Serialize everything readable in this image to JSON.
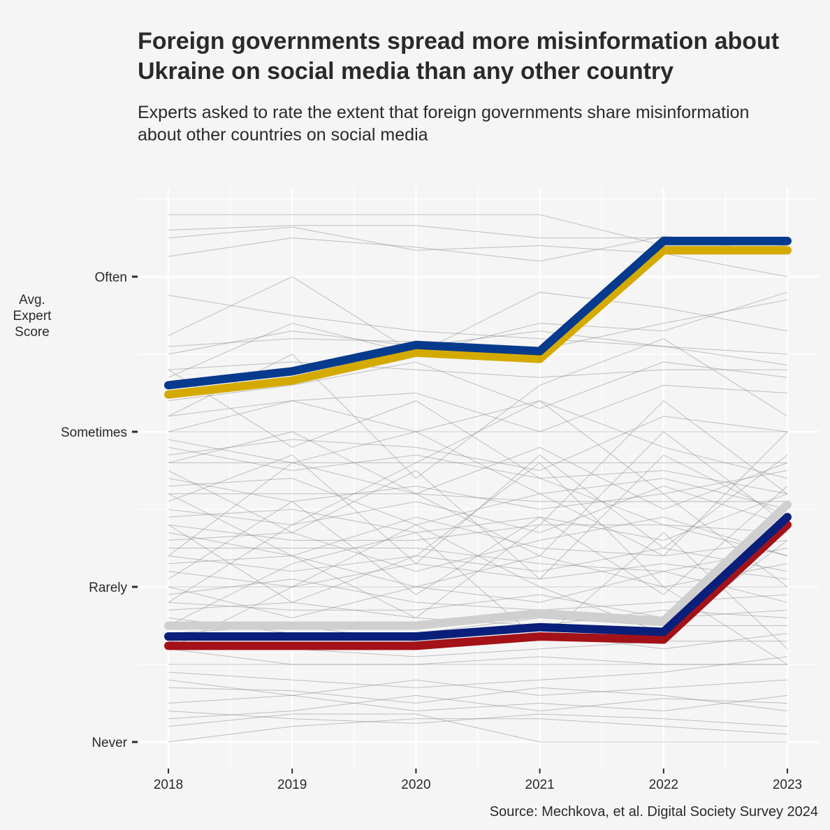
{
  "chart_data": {
    "type": "line",
    "title": "Foreign governments spread more misinformation about\nUkraine on social media than any other country",
    "subtitle": "Experts asked to rate the extent that foreign governments share misinformation\nabout other countries on social media",
    "ylabel": "Avg.\nExpert\nScore",
    "xlabel": "",
    "caption": "Source: Mechkova, et al. Digital Society Survey 2024",
    "x": [
      2018,
      2019,
      2020,
      2021,
      2022,
      2023
    ],
    "y_ticks": [
      {
        "value": 0,
        "label": "Never"
      },
      {
        "value": 1,
        "label": "Rarely"
      },
      {
        "value": 2,
        "label": "Sometimes"
      },
      {
        "value": 3,
        "label": "Often"
      }
    ],
    "x_tick_labels": [
      "2018",
      "2019",
      "2020",
      "2021",
      "2022",
      "2023"
    ],
    "ylim": [
      -0.15,
      3.55
    ],
    "grid": true,
    "highlighted_series": [
      {
        "values": [
          2.24,
          2.33,
          2.51,
          2.47,
          3.17,
          3.17
        ],
        "color": "#d4aa00",
        "width": 12
      },
      {
        "values": [
          2.3,
          2.39,
          2.56,
          2.52,
          3.23,
          3.23
        ],
        "color": "#063a8c",
        "width": 12
      },
      {
        "values": [
          0.62,
          0.62,
          0.62,
          0.68,
          0.66,
          1.4
        ],
        "color": "#a31218",
        "width": 12
      },
      {
        "values": [
          0.75,
          0.75,
          0.75,
          0.83,
          0.78,
          1.53
        ],
        "color": "#cfcfcf",
        "width": 12
      },
      {
        "values": [
          0.68,
          0.68,
          0.68,
          0.74,
          0.71,
          1.45
        ],
        "color": "#0a1f7a",
        "width": 12
      }
    ],
    "background_series": [
      [
        3.4,
        3.4,
        3.4,
        3.4,
        3.2,
        3.2
      ],
      [
        3.3,
        3.33,
        3.33,
        3.25,
        3.25,
        3.15
      ],
      [
        3.25,
        3.32,
        3.17,
        3.2,
        3.15,
        3.0
      ],
      [
        3.13,
        3.25,
        3.19,
        3.1,
        3.26,
        3.2
      ],
      [
        2.88,
        2.75,
        2.65,
        2.6,
        2.55,
        2.5
      ],
      [
        2.62,
        3.0,
        2.5,
        2.9,
        2.8,
        2.65
      ],
      [
        2.55,
        2.6,
        2.58,
        2.53,
        2.7,
        2.85
      ],
      [
        2.5,
        2.65,
        2.55,
        2.65,
        2.55,
        2.43
      ],
      [
        2.4,
        2.45,
        2.4,
        2.35,
        2.4,
        2.4
      ],
      [
        2.35,
        2.7,
        2.5,
        2.7,
        2.65,
        2.9
      ],
      [
        2.2,
        2.3,
        2.45,
        2.15,
        2.45,
        2.35
      ],
      [
        2.1,
        2.2,
        2.25,
        2.0,
        2.3,
        2.25
      ],
      [
        2.0,
        2.0,
        2.0,
        2.0,
        2.0,
        2.0
      ],
      [
        2.0,
        2.2,
        2.0,
        2.2,
        1.9,
        1.7
      ],
      [
        1.95,
        1.8,
        1.6,
        1.9,
        1.5,
        1.8
      ],
      [
        1.9,
        1.75,
        1.85,
        1.7,
        1.75,
        1.6
      ],
      [
        1.85,
        1.95,
        1.9,
        1.75,
        2.1,
        2.0
      ],
      [
        1.8,
        1.8,
        1.8,
        1.8,
        1.8,
        1.8
      ],
      [
        1.7,
        1.55,
        1.65,
        1.5,
        1.6,
        1.75
      ],
      [
        1.65,
        1.7,
        1.4,
        1.6,
        1.7,
        1.5
      ],
      [
        1.6,
        1.6,
        1.6,
        1.55,
        1.55,
        1.55
      ],
      [
        1.5,
        1.4,
        1.55,
        1.35,
        1.65,
        1.4
      ],
      [
        1.45,
        1.5,
        1.35,
        1.45,
        1.3,
        1.6
      ],
      [
        1.4,
        1.3,
        1.3,
        1.4,
        1.4,
        1.35
      ],
      [
        1.35,
        1.2,
        1.45,
        1.25,
        1.2,
        1.3
      ],
      [
        1.3,
        1.35,
        1.1,
        1.3,
        1.45,
        1.2
      ],
      [
        1.25,
        1.25,
        1.25,
        1.15,
        1.1,
        1.25
      ],
      [
        1.2,
        1.1,
        1.2,
        1.1,
        1.25,
        1.1
      ],
      [
        1.15,
        1.2,
        1.0,
        1.2,
        1.0,
        1.15
      ],
      [
        1.1,
        1.0,
        1.15,
        1.05,
        1.15,
        1.05
      ],
      [
        1.0,
        1.0,
        1.0,
        1.0,
        1.0,
        1.0
      ],
      [
        1.0,
        0.8,
        1.0,
        0.9,
        1.1,
        0.9
      ],
      [
        0.95,
        1.05,
        0.9,
        0.85,
        0.9,
        0.95
      ],
      [
        0.9,
        0.85,
        0.85,
        0.95,
        0.8,
        0.85
      ],
      [
        0.85,
        0.9,
        0.8,
        0.75,
        0.85,
        0.8
      ],
      [
        0.8,
        0.7,
        0.7,
        0.8,
        0.75,
        0.75
      ],
      [
        0.7,
        0.75,
        0.65,
        0.7,
        0.6,
        0.7
      ],
      [
        0.65,
        0.6,
        0.55,
        0.6,
        0.65,
        0.65
      ],
      [
        0.6,
        0.5,
        0.5,
        0.55,
        0.5,
        0.5
      ],
      [
        0.5,
        0.5,
        0.5,
        0.5,
        0.5,
        0.5
      ],
      [
        0.45,
        0.4,
        0.35,
        0.4,
        0.45,
        0.55
      ],
      [
        0.4,
        0.3,
        0.4,
        0.3,
        0.35,
        0.4
      ],
      [
        0.35,
        0.33,
        0.25,
        0.35,
        0.3,
        0.2
      ],
      [
        0.25,
        0.3,
        0.2,
        0.25,
        0.2,
        0.3
      ],
      [
        0.2,
        0.15,
        0.12,
        0.18,
        0.15,
        0.1
      ],
      [
        0.15,
        0.2,
        0.3,
        0.2,
        0.28,
        0.25
      ],
      [
        0.1,
        0.18,
        0.18,
        0.0,
        0.0,
        0.0
      ],
      [
        0.0,
        0.1,
        0.15,
        0.15,
        0.1,
        0.05
      ],
      [
        1.8,
        2.0,
        1.6,
        1.2,
        2.0,
        1.4
      ],
      [
        1.2,
        1.8,
        2.0,
        1.6,
        1.2,
        2.0
      ],
      [
        0.9,
        1.4,
        1.8,
        2.2,
        1.6,
        1.0
      ],
      [
        1.6,
        1.2,
        0.8,
        1.4,
        2.2,
        1.6
      ],
      [
        2.4,
        1.9,
        2.2,
        1.7,
        1.4,
        1.2
      ],
      [
        0.6,
        1.0,
        1.4,
        1.0,
        0.7,
        1.3
      ],
      [
        1.4,
        0.9,
        1.2,
        1.8,
        1.0,
        0.5
      ],
      [
        2.1,
        2.5,
        1.7,
        2.3,
        2.6,
        2.1
      ],
      [
        1.05,
        1.55,
        0.95,
        1.45,
        0.95,
        1.65
      ],
      [
        0.75,
        1.15,
        1.35,
        0.65,
        1.35,
        0.6
      ],
      [
        1.75,
        1.35,
        1.75,
        1.05,
        1.85,
        1.45
      ],
      [
        1.55,
        1.85,
        1.15,
        1.85,
        1.25,
        1.85
      ]
    ],
    "background_color": "#7d7d7d"
  }
}
